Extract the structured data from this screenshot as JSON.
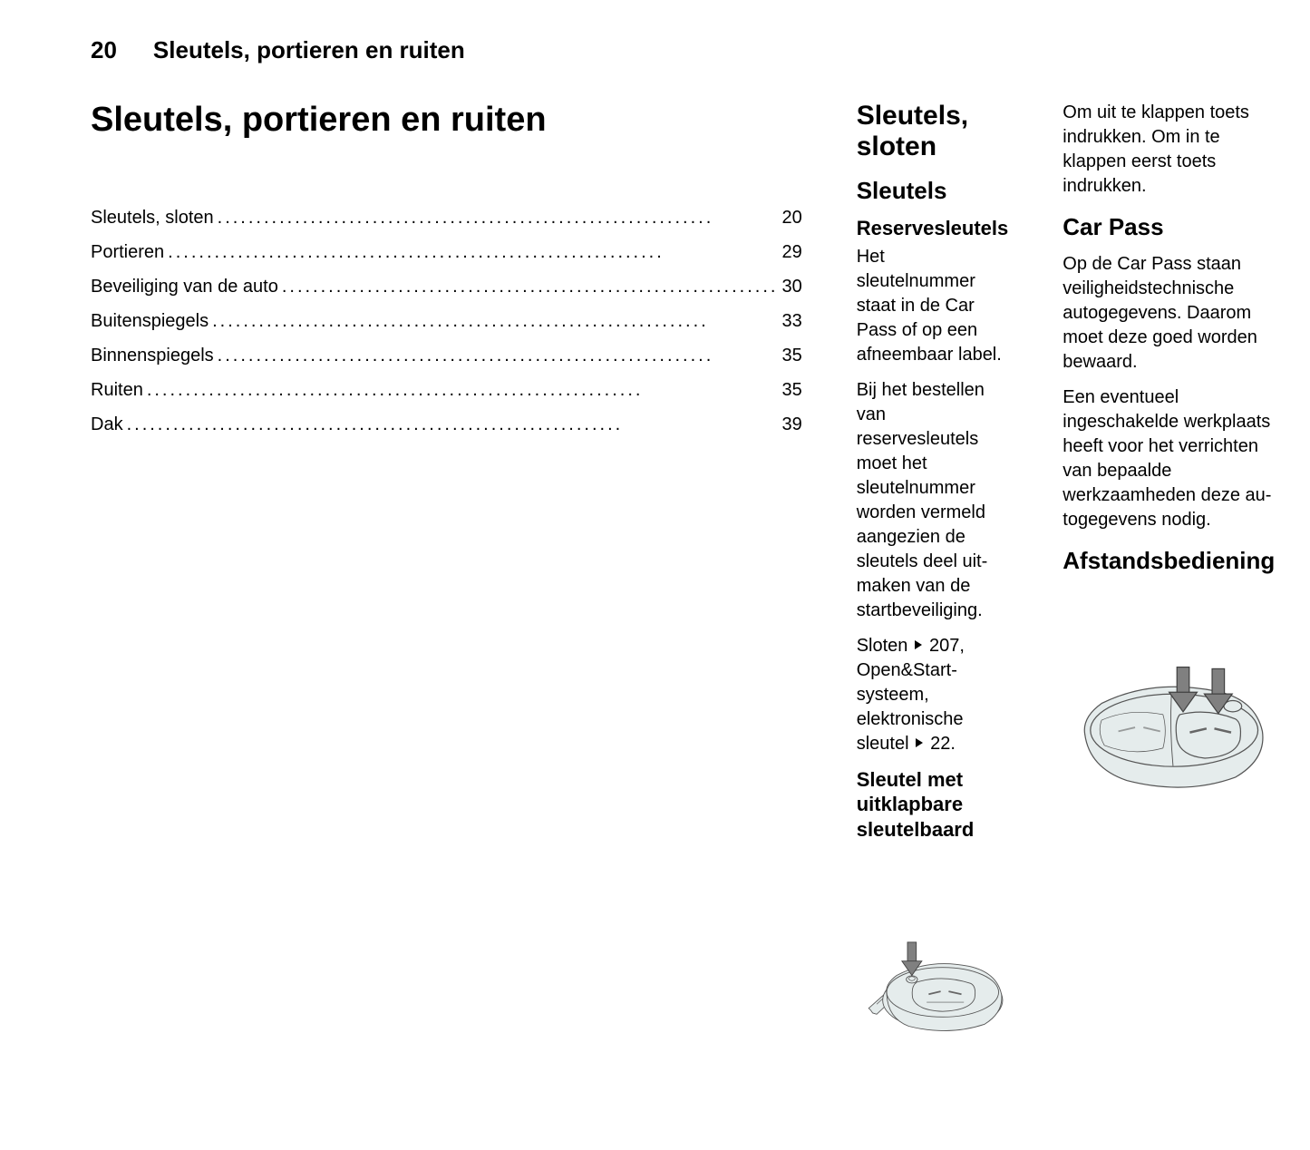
{
  "header": {
    "page_number": "20",
    "running_title": "Sleutels, portieren en ruiten"
  },
  "col1": {
    "chapter_title": "Sleutels, portieren en ruiten",
    "toc": [
      {
        "label": "Sleutels, sloten",
        "page": "20"
      },
      {
        "label": "Portieren",
        "page": "29"
      },
      {
        "label": "Beveiliging van de auto",
        "page": "30"
      },
      {
        "label": "Buitenspiegels",
        "page": "33"
      },
      {
        "label": "Binnenspiegels",
        "page": "35"
      },
      {
        "label": "Ruiten",
        "page": "35"
      },
      {
        "label": "Dak",
        "page": "39"
      }
    ]
  },
  "col2": {
    "h1": "Sleutels, sloten",
    "h2": "Sleutels",
    "h3a": "Reservesleutels",
    "p1": "Het sleutelnummer staat in de Car Pass of op een afneembaar label.",
    "p2": "Bij het bestellen van reservesleutels moet het sleutelnummer worden ver­meld aangezien de sleutels deel uit­maken van de startbeveiliging.",
    "p3_pre": "Sloten",
    "p3_ref1": "207",
    "p3_mid": ", Open&Start-systeem, elektronische sleutel",
    "p3_ref2": "22",
    "p3_post": ".",
    "h3b": "Sleutel met uitklapbare sleutelbaard"
  },
  "col3": {
    "p1": "Om uit te klappen toets indrukken. Om in te klappen eerst toets indruk­ken.",
    "h2a": "Car Pass",
    "p2": "Op de Car Pass staan veiligheids­technische autogegevens. Daarom moet deze goed worden bewaard.",
    "p3": "Een eventueel ingeschakelde werk­plaats heeft voor het verrichten van bepaalde werkzaamheden deze au­togegevens nodig.",
    "h2b": "Afstandsbediening"
  },
  "figures": {
    "key_fill": "#e5ecec",
    "key_stroke": "#555555",
    "arrow_fill": "#808080",
    "arrow_stroke": "#404040",
    "button_line": "#666666"
  }
}
